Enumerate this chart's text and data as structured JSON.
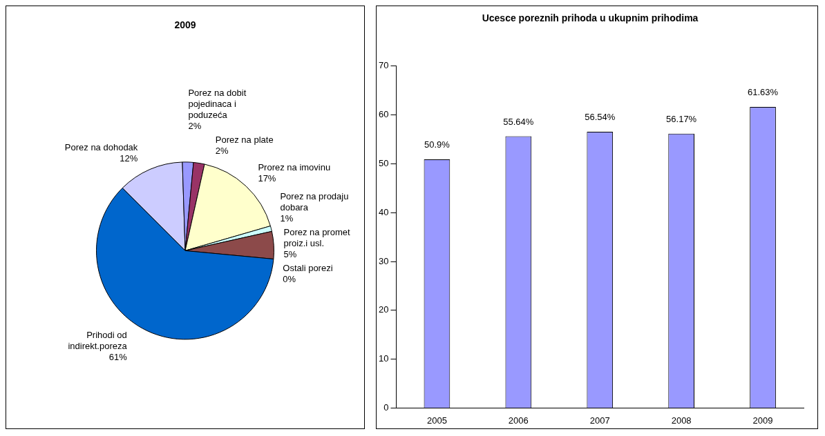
{
  "chart_data": [
    {
      "type": "pie",
      "title": "2009",
      "categories": [
        "Porez na dohodak",
        "Porez na dobit pojedinaca i poduzeća",
        "Porez na plate",
        "Prorez na imovinu",
        "Porez na prodaju dobara",
        "Porez na promet proiz.i usl.",
        "Ostali porezi",
        "Prihodi od indirekt.poreza"
      ],
      "values": [
        12,
        2,
        2,
        17,
        1,
        5,
        0,
        61
      ],
      "value_labels": [
        "12%",
        "2%",
        "2%",
        "17%",
        "1%",
        "5%",
        "0%",
        "61%"
      ],
      "colors": [
        "#ccccff",
        "#9999ff",
        "#993366",
        "#ffffcc",
        "#ccffff",
        "#8c4a4a",
        "#660066",
        "#0066cc"
      ],
      "legend": false
    },
    {
      "type": "bar",
      "title": "Ucesce poreznih prihoda u ukupnim prihodima",
      "categories": [
        "2005",
        "2006",
        "2007",
        "2008",
        "2009"
      ],
      "values": [
        50.9,
        55.64,
        56.54,
        56.17,
        61.63
      ],
      "value_labels": [
        "50.9%",
        "55.64%",
        "56.54%",
        "56.17%",
        "61.63%"
      ],
      "color": "#9999ff",
      "ylim": [
        0,
        70
      ],
      "yticks": [
        0,
        10,
        20,
        30,
        40,
        50,
        60,
        70
      ],
      "grid": false,
      "legend": false
    }
  ]
}
